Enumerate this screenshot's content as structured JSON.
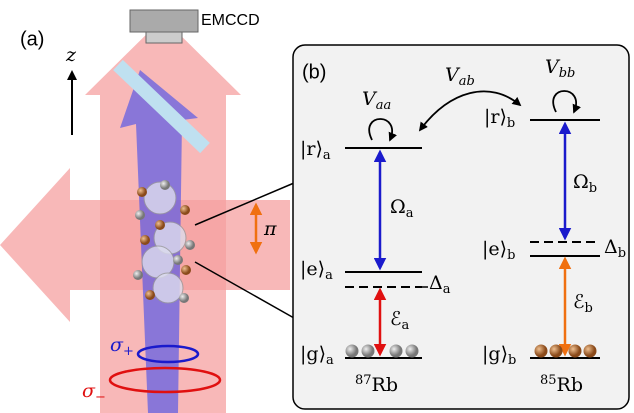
{
  "panel_a": {
    "label": "(a)",
    "camera": "EMCCD",
    "axis": "z",
    "pi": "π",
    "sigma_plus": {
      "main": "σ",
      "sub": "+"
    },
    "sigma_minus": {
      "main": "σ",
      "sub": "−"
    }
  },
  "panel_b": {
    "label": "(b)",
    "V_aa": {
      "main": "V",
      "sub": "aa"
    },
    "V_ab": {
      "main": "V",
      "sub": "ab"
    },
    "V_bb": {
      "main": "V",
      "sub": "bb"
    },
    "r_a": {
      "main": "|r⟩",
      "sub": "a"
    },
    "e_a": {
      "main": "|e⟩",
      "sub": "a"
    },
    "g_a": {
      "main": "|g⟩",
      "sub": "a"
    },
    "r_b": {
      "main": "|r⟩",
      "sub": "b"
    },
    "e_b": {
      "main": "|e⟩",
      "sub": "b"
    },
    "g_b": {
      "main": "|g⟩",
      "sub": "b"
    },
    "Omega_a": {
      "main": "Ω",
      "sub": "a"
    },
    "Omega_b": {
      "main": "Ω",
      "sub": "b"
    },
    "E_a": {
      "main": "ℰ",
      "sub": "a"
    },
    "E_b": {
      "main": "ℰ",
      "sub": "b"
    },
    "Delta_a": {
      "main": "Δ",
      "sub": "a"
    },
    "Delta_b": {
      "main": "Δ",
      "sub": "b"
    },
    "isotope_a": {
      "mass": "87",
      "element": "Rb"
    },
    "isotope_b": {
      "mass": "85",
      "element": "Rb"
    }
  }
}
